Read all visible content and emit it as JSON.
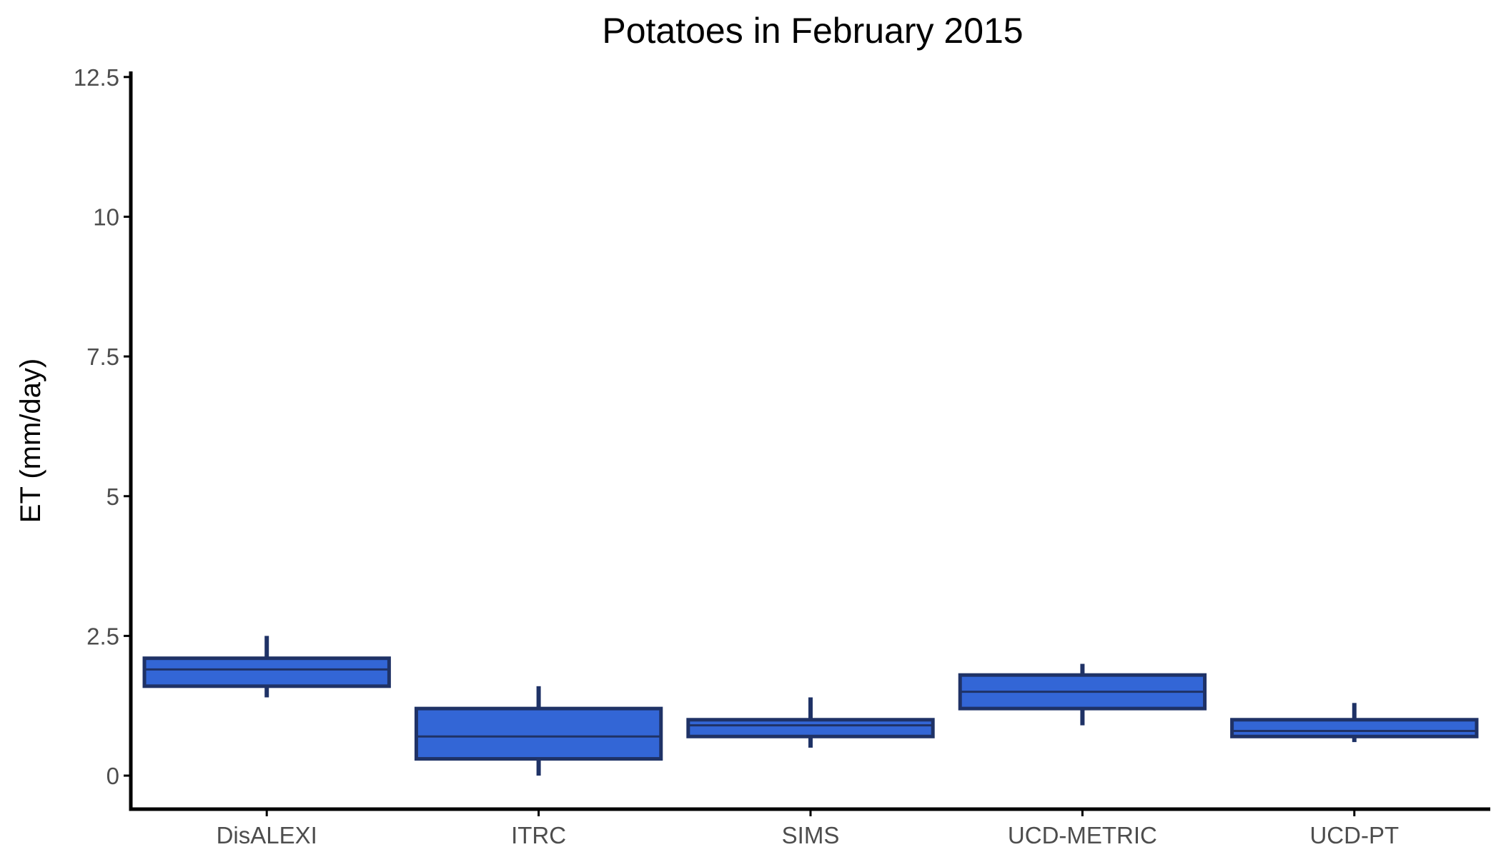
{
  "chart_data": {
    "type": "boxplot",
    "title": "Potatoes in February 2015",
    "xlabel": "",
    "ylabel": "ET (mm/day)",
    "ylim": [
      -0.6,
      12.6
    ],
    "yticks": [
      0,
      2.5,
      5,
      7.5,
      10,
      12.5
    ],
    "ytick_labels": [
      "0",
      "2.5",
      "5",
      "7.5",
      "10",
      "12.5"
    ],
    "categories": [
      "DisALEXI",
      "ITRC",
      "SIMS",
      "UCD-METRIC",
      "UCD-PT"
    ],
    "boxes": [
      {
        "category": "DisALEXI",
        "min": 1.4,
        "q1": 1.6,
        "median": 1.9,
        "q3": 2.1,
        "max": 2.5
      },
      {
        "category": "ITRC",
        "min": 0.0,
        "q1": 0.3,
        "median": 0.7,
        "q3": 1.2,
        "max": 1.6
      },
      {
        "category": "SIMS",
        "min": 0.5,
        "q1": 0.7,
        "median": 0.9,
        "q3": 1.0,
        "max": 1.4
      },
      {
        "category": "UCD-METRIC",
        "min": 0.9,
        "q1": 1.2,
        "median": 1.5,
        "q3": 1.8,
        "max": 2.0
      },
      {
        "category": "UCD-PT",
        "min": 0.6,
        "q1": 0.7,
        "median": 0.8,
        "q3": 1.0,
        "max": 1.3
      }
    ],
    "grid": false,
    "legend": "none",
    "colors": {
      "box_fill": "#3366d6",
      "box_outline": "#1f3266",
      "axis": "#000000",
      "tick_text": "#4d4d4d"
    }
  }
}
